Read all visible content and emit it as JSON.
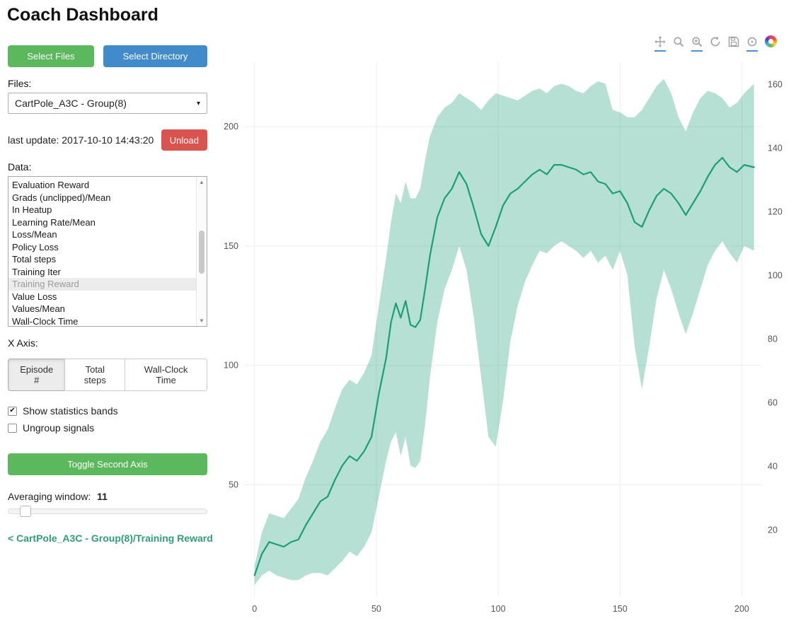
{
  "header": {
    "title": "Coach Dashboard"
  },
  "icons": {
    "caret_down": "▾",
    "check": "✔",
    "arrow_up": "▲",
    "arrow_down": "▼"
  },
  "colors": {
    "primary_green": "#5cb85c",
    "primary_blue": "#428bca",
    "danger_red": "#d9534f",
    "link_green": "#2f9e77",
    "line_green": "#1b9e77",
    "modebar_active_blue": "#4a90d9"
  },
  "sidebar": {
    "select_files_label": "Select Files",
    "select_directory_label": "Select Directory",
    "files_label": "Files:",
    "files_dropdown_value": "CartPole_A3C - Group(8)",
    "last_update_label": "last update: 2017-10-10 14:43:20",
    "unload_label": "Unload",
    "data_label": "Data:",
    "data_items": [
      "Evaluation Reward",
      "Grads (unclipped)/Mean",
      "In Heatup",
      "Learning Rate/Mean",
      "Loss/Mean",
      "Policy Loss",
      "Total steps",
      "Training Iter",
      "Training Reward",
      "Value Loss",
      "Values/Mean",
      "Wall-Clock Time"
    ],
    "selected_data_item": "Training Reward",
    "x_axis_label": "X Axis:",
    "x_axis_options": [
      "Episode #",
      "Total steps",
      "Wall-Clock Time"
    ],
    "x_axis_selected": "Episode #",
    "checkboxes": [
      {
        "label": "Show statistics bands",
        "checked": true
      },
      {
        "label": "Ungroup signals",
        "checked": false
      }
    ],
    "toggle_second_axis_label": "Toggle Second Axis",
    "averaging_window_label": "Averaging window:",
    "averaging_window_value": "11",
    "breadcrumb": "< CartPole_A3C - Group(8)/Training Reward"
  },
  "modebar": {
    "icons": [
      {
        "name": "pan",
        "active": true
      },
      {
        "name": "box-zoom",
        "active": false
      },
      {
        "name": "wheel-zoom",
        "active": true
      },
      {
        "name": "reset",
        "active": false
      },
      {
        "name": "save",
        "active": false
      },
      {
        "name": "hover",
        "active": true
      },
      {
        "name": "bokeh-logo",
        "active": false
      }
    ]
  },
  "chart_data": {
    "type": "line",
    "title": "",
    "xlabel": "",
    "ylabel": "",
    "legend": "none",
    "grid": true,
    "x_ticks": [
      0,
      50,
      100,
      150,
      200
    ],
    "y_ticks_left": [
      50,
      100,
      150,
      200
    ],
    "y_ticks_right": [
      20,
      40,
      60,
      80,
      100,
      120,
      140,
      160
    ],
    "xlim": [
      -4,
      208
    ],
    "ylim_left": [
      3,
      227
    ],
    "ylim_right": [
      -1,
      167
    ],
    "x": [
      0,
      3,
      6,
      9,
      12,
      15,
      18,
      21,
      24,
      27,
      30,
      33,
      36,
      39,
      42,
      45,
      48,
      51,
      54,
      56,
      58,
      60,
      62,
      64,
      66,
      68,
      70,
      72,
      75,
      78,
      81,
      84,
      87,
      90,
      93,
      96,
      99,
      102,
      105,
      108,
      111,
      114,
      117,
      120,
      123,
      126,
      129,
      132,
      135,
      138,
      141,
      144,
      147,
      150,
      153,
      156,
      159,
      162,
      165,
      168,
      171,
      174,
      177,
      180,
      183,
      186,
      189,
      192,
      195,
      198,
      201,
      205
    ],
    "series": [
      {
        "name": "Training Reward",
        "color": "#1b9e77",
        "values": [
          12,
          21,
          26,
          25,
          24,
          26,
          27,
          33,
          38,
          43,
          45,
          52,
          58,
          62,
          60,
          64,
          70,
          88,
          103,
          118,
          126,
          120,
          127,
          117,
          116,
          119,
          132,
          146,
          162,
          170,
          174,
          181,
          176,
          166,
          155,
          150,
          158,
          167,
          172,
          174,
          177,
          180,
          182,
          180,
          184,
          184,
          183,
          182,
          180,
          181,
          177,
          176,
          172,
          173,
          168,
          160,
          158,
          165,
          171,
          174,
          172,
          168,
          163,
          168,
          173,
          179,
          184,
          187,
          183,
          181,
          184,
          183
        ]
      }
    ],
    "band": {
      "name": "statistics band",
      "fill": "#1b9e77",
      "opacity": 0.32,
      "lower": [
        8,
        12,
        14,
        12,
        11,
        10,
        10,
        12,
        13,
        13,
        12,
        15,
        18,
        22,
        20,
        24,
        30,
        45,
        60,
        68,
        72,
        62,
        70,
        58,
        57,
        60,
        75,
        95,
        118,
        132,
        140,
        150,
        140,
        120,
        95,
        70,
        66,
        85,
        110,
        125,
        135,
        142,
        148,
        147,
        150,
        152,
        150,
        148,
        145,
        148,
        143,
        146,
        140,
        148,
        138,
        108,
        90,
        108,
        128,
        140,
        132,
        122,
        113,
        122,
        132,
        142,
        148,
        152,
        147,
        143,
        150,
        148
      ],
      "upper": [
        16,
        30,
        38,
        37,
        36,
        40,
        44,
        53,
        60,
        68,
        73,
        82,
        90,
        94,
        92,
        97,
        104,
        125,
        145,
        160,
        172,
        168,
        177,
        170,
        170,
        174,
        186,
        196,
        204,
        208,
        210,
        214,
        212,
        210,
        207,
        211,
        214,
        213,
        212,
        211,
        213,
        215,
        216,
        214,
        217,
        218,
        217,
        215,
        214,
        217,
        219,
        218,
        207,
        206,
        204,
        204,
        207,
        212,
        217,
        220,
        214,
        204,
        198,
        206,
        212,
        215,
        214,
        212,
        208,
        210,
        214,
        218
      ]
    }
  }
}
